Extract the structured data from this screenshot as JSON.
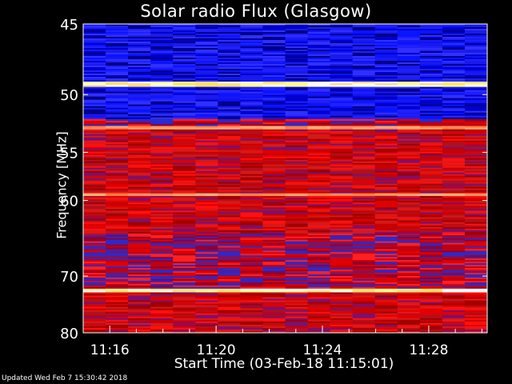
{
  "title": "Solar radio Flux (Glasgow)",
  "footer": "Updated Wed Feb  7 15:30:42 2018",
  "chart_data": {
    "type": "heatmap",
    "title": "Solar radio Flux (Glasgow)",
    "xlabel": "Start Time (03-Feb-18 11:15:01)",
    "ylabel": "Frequency [MHz]",
    "x_ticks": [
      "11:16",
      "11:20",
      "11:24",
      "11:28"
    ],
    "x_tick_minutes": [
      1,
      5,
      9,
      13
    ],
    "x_range_minutes": [
      0,
      15.2
    ],
    "y_ticks": [
      45,
      50,
      55,
      60,
      70,
      80
    ],
    "y_range_mhz": [
      45,
      80
    ],
    "y_scale": "reciprocal",
    "colormap": [
      "#000033",
      "#2020ff",
      "#ff0000",
      "#ff8040",
      "#ffff80"
    ],
    "bands": [
      {
        "from": 45.0,
        "to": 49.0,
        "level": "blue"
      },
      {
        "from": 49.0,
        "to": 49.4,
        "level": "peak"
      },
      {
        "from": 49.4,
        "to": 52.0,
        "level": "blue"
      },
      {
        "from": 52.0,
        "to": 52.6,
        "level": "mixed"
      },
      {
        "from": 52.6,
        "to": 52.9,
        "level": "bright"
      },
      {
        "from": 52.9,
        "to": 59.2,
        "level": "red"
      },
      {
        "from": 59.2,
        "to": 59.5,
        "level": "bright"
      },
      {
        "from": 59.5,
        "to": 64.0,
        "level": "red"
      },
      {
        "from": 64.0,
        "to": 66.5,
        "level": "mixed"
      },
      {
        "from": 66.5,
        "to": 72.0,
        "level": "mixed"
      },
      {
        "from": 72.0,
        "to": 72.6,
        "level": "peak"
      },
      {
        "from": 72.6,
        "to": 80.0,
        "level": "red"
      }
    ]
  }
}
